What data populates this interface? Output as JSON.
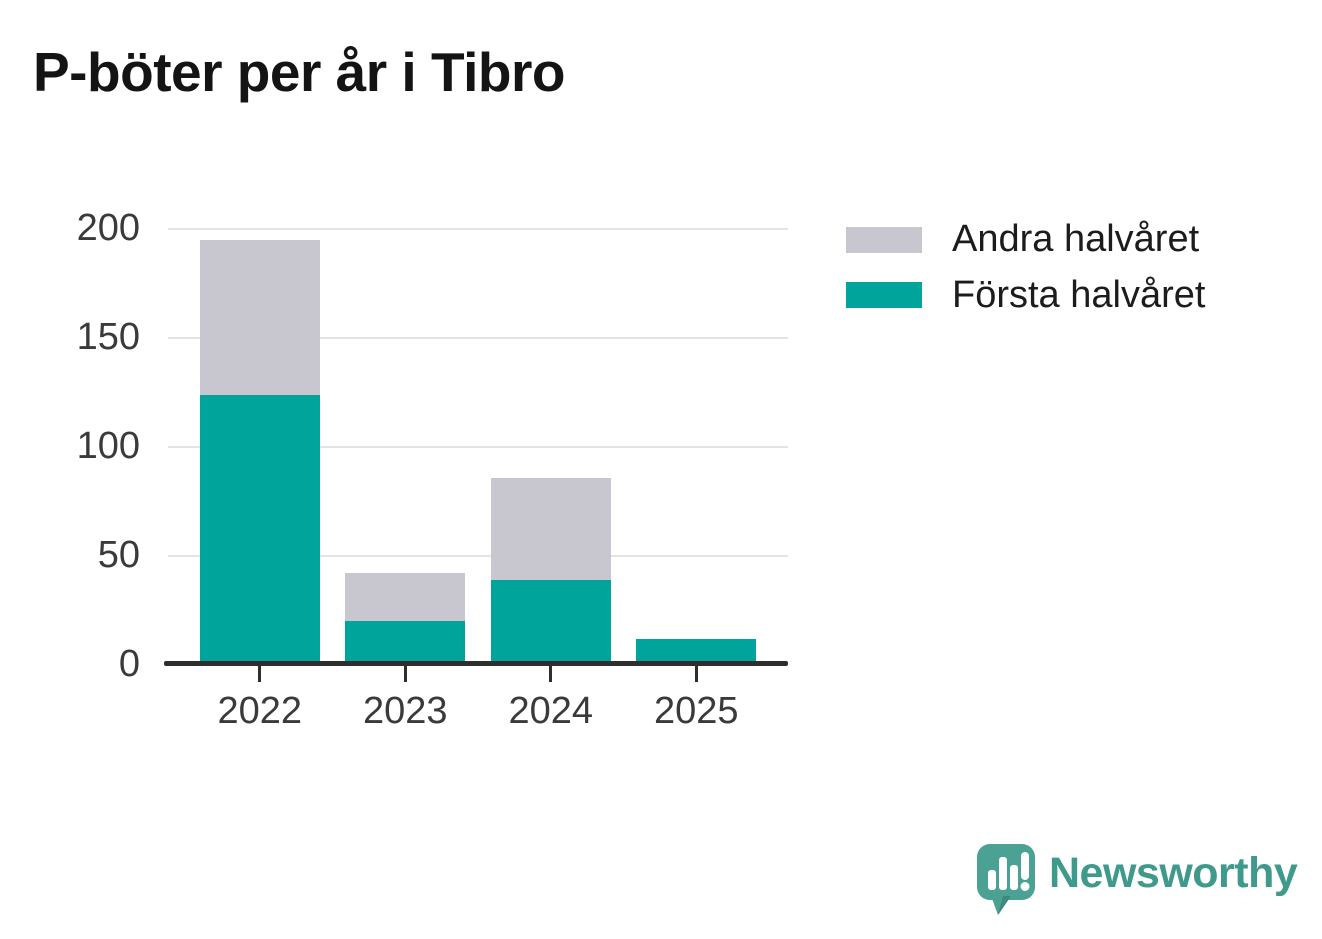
{
  "title": "P-böter per år i Tibro",
  "chart_data": {
    "type": "bar",
    "stacked": true,
    "title": "P-böter per år i Tibro",
    "categories": [
      "2022",
      "2023",
      "2024",
      "2025"
    ],
    "series": [
      {
        "name": "Första halvåret",
        "color": "#00A49B",
        "values": [
          124,
          20,
          39,
          12
        ]
      },
      {
        "name": "Andra halvåret",
        "color": "#C8C6CF",
        "values": [
          71,
          22,
          47,
          0
        ]
      }
    ],
    "xlabel": "",
    "ylabel": "",
    "ylim": [
      0,
      200
    ],
    "yticks": [
      0,
      50,
      100,
      150,
      200
    ],
    "grid": true,
    "legend_position": "top-right"
  },
  "legend": {
    "items": [
      {
        "label": "Andra halvåret",
        "color": "#C8C6CF"
      },
      {
        "label": "Första halvåret",
        "color": "#00A49B"
      }
    ]
  },
  "colors": {
    "first_half": "#00A49B",
    "second_half": "#C8C6CF",
    "axis": "#2e2e2e",
    "gridline": "#e3e2e6",
    "brand_icon": "#4BA294",
    "brand_text": "#3f9a8c"
  },
  "footer": {
    "brand": "Newsworthy"
  }
}
